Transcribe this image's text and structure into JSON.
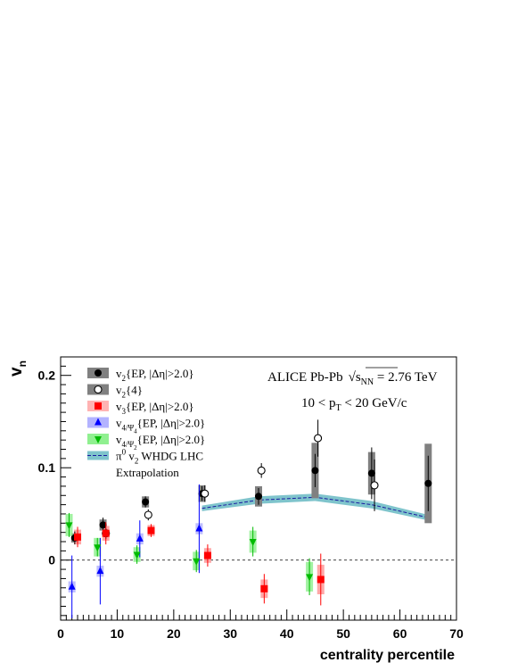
{
  "chart_data": {
    "type": "scatter",
    "xlabel": "centrality percentile",
    "ylabel": "v",
    "ylabel_sub": "n",
    "xlim": [
      0,
      70
    ],
    "ylim": [
      -0.065,
      0.22
    ],
    "x_ticks": [
      0,
      10,
      20,
      30,
      40,
      50,
      60,
      70
    ],
    "y_ticks": [
      -0.1,
      0,
      0.1,
      0.2
    ],
    "y_tick_labels": [
      "",
      "0",
      "0.1",
      "0.2"
    ],
    "zero_line": true,
    "annotation": {
      "line1_prefix": "ALICE Pb-Pb",
      "line1_sqrt": "s",
      "line1_sqrt_sub": "NN",
      "line1_suffix": " = 2.76 TeV",
      "line2_prefix": "10 < p",
      "line2_sub": "T",
      "line2_suffix": " < 20 GeV/c"
    },
    "legend": [
      {
        "key": "v2_ep",
        "main": "v",
        "sub": "2",
        "tail": "{EP, |Δη|>2.0}",
        "marker": "circle-filled",
        "color": "#000000",
        "box": "#808080"
      },
      {
        "key": "v2_4",
        "main": "v",
        "sub": "2",
        "tail": "{4}",
        "marker": "circle-open",
        "color": "#000000",
        "box": "#808080"
      },
      {
        "key": "v3_ep",
        "main": "v",
        "sub": "3",
        "tail": "{EP, |Δη|>2.0}",
        "marker": "square",
        "color": "#ff0000",
        "box": "#ffb3b3"
      },
      {
        "key": "v4_psi4",
        "main": "v",
        "sub": "4/Ψ",
        "subsub": "4",
        "tail": "{EP, |Δη|>2.0}",
        "marker": "triangle-up",
        "color": "#0000ff",
        "box": "#b3b3ff"
      },
      {
        "key": "v4_psi2",
        "main": "v",
        "sub": "4/Ψ",
        "subsub": "2",
        "tail": "{EP, |Δη|>2.0}",
        "marker": "triangle-down",
        "color": "#00bb00",
        "box": "#90f090"
      },
      {
        "key": "whdg",
        "main": "π",
        "sup": "0",
        "text2": " v",
        "sub2": "2",
        "tail": " WHDG LHC",
        "marker": "band",
        "color": "#1a1aa0",
        "box": "#7fc4cc"
      },
      {
        "key": "extrap",
        "tail": "Extrapolation",
        "marker": "none"
      }
    ],
    "series": [
      {
        "name": "v2{EP, |Δη|>2.0}",
        "marker": "circle-filled",
        "color": "#000000",
        "sys_color": "#808080",
        "points": [
          {
            "x": 2.5,
            "y": 0.024,
            "stat": 0.007,
            "sys": 0.005
          },
          {
            "x": 7.5,
            "y": 0.038,
            "stat": 0.008,
            "sys": 0.006
          },
          {
            "x": 15,
            "y": 0.063,
            "stat": 0.006,
            "sys": 0.006
          },
          {
            "x": 25,
            "y": 0.072,
            "stat": 0.008,
            "sys": 0.009
          },
          {
            "x": 35,
            "y": 0.069,
            "stat": 0.009,
            "sys": 0.011
          },
          {
            "x": 45,
            "y": 0.097,
            "stat": 0.018,
            "sys": 0.03
          },
          {
            "x": 55,
            "y": 0.094,
            "stat": 0.028,
            "sys": 0.023
          },
          {
            "x": 65,
            "y": 0.083,
            "stat": 0.03,
            "sys": 0.043
          }
        ]
      },
      {
        "name": "v2{4}",
        "marker": "circle-open",
        "color": "#000000",
        "sys_color": "#808080",
        "points": [
          {
            "x": 8.0,
            "y": 0.029,
            "stat": 0.006
          },
          {
            "x": 15.5,
            "y": 0.049,
            "stat": 0.006
          },
          {
            "x": 25.5,
            "y": 0.072,
            "stat": 0.009
          },
          {
            "x": 35.5,
            "y": 0.097,
            "stat": 0.008
          },
          {
            "x": 45.5,
            "y": 0.132,
            "stat": 0.02
          },
          {
            "x": 55.5,
            "y": 0.081,
            "stat": 0.028
          }
        ]
      },
      {
        "name": "v3{EP, |Δη|>2.0}",
        "marker": "square",
        "color": "#ff0000",
        "sys_color": "#ff9999",
        "points": [
          {
            "x": 3.0,
            "y": 0.025,
            "stat": 0.011,
            "sys": 0.008
          },
          {
            "x": 8.0,
            "y": 0.029,
            "stat": 0.012,
            "sys": 0.008
          },
          {
            "x": 16.0,
            "y": 0.032,
            "stat": 0.007,
            "sys": 0.006
          },
          {
            "x": 26.0,
            "y": 0.005,
            "stat": 0.012,
            "sys": 0.008
          },
          {
            "x": 36.0,
            "y": -0.031,
            "stat": 0.016,
            "sys": 0.01
          },
          {
            "x": 46.0,
            "y": -0.021,
            "stat": 0.028,
            "sys": 0.016
          }
        ]
      },
      {
        "name": "v4/Ψ4{EP, |Δη|>2.0}",
        "marker": "triangle-up",
        "color": "#0000ff",
        "sys_color": "#b3b3ff",
        "points": [
          {
            "x": 2.0,
            "y": -0.029,
            "stat": 0.034,
            "sys": 0.006
          },
          {
            "x": 7.0,
            "y": -0.012,
            "stat": 0.036,
            "sys": 0.006
          },
          {
            "x": 14.0,
            "y": 0.023,
            "stat": 0.02,
            "sys": 0.006
          },
          {
            "x": 24.5,
            "y": 0.034,
            "stat": 0.048,
            "sys": 0.006
          }
        ]
      },
      {
        "name": "v4/Ψ2{EP, |Δη|>2.0}",
        "marker": "triangle-down",
        "color": "#00bb00",
        "sys_color": "#90f090",
        "points": [
          {
            "x": 1.5,
            "y": 0.038,
            "stat": 0.013,
            "sys": 0.012
          },
          {
            "x": 6.5,
            "y": 0.014,
            "stat": 0.01,
            "sys": 0.01
          },
          {
            "x": 13.5,
            "y": 0.006,
            "stat": 0.01,
            "sys": 0.008
          },
          {
            "x": 24.0,
            "y": -0.001,
            "stat": 0.012,
            "sys": 0.01
          },
          {
            "x": 34.0,
            "y": 0.02,
            "stat": 0.016,
            "sys": 0.012
          },
          {
            "x": 44.0,
            "y": -0.018,
            "stat": 0.02,
            "sys": 0.016
          }
        ]
      },
      {
        "name": "π0 v2 WHDG LHC",
        "marker": "band",
        "color": "#1a1aa0",
        "sys_color": "#7fc4cc",
        "band": [
          {
            "x": 25,
            "lo": 0.053,
            "hi": 0.059
          },
          {
            "x": 35,
            "lo": 0.061,
            "hi": 0.069
          },
          {
            "x": 45,
            "lo": 0.064,
            "hi": 0.072
          },
          {
            "x": 55,
            "lo": 0.056,
            "hi": 0.064
          },
          {
            "x": 65,
            "lo": 0.043,
            "hi": 0.049
          }
        ],
        "line": [
          {
            "x": 25,
            "y": 0.056
          },
          {
            "x": 35,
            "y": 0.065
          },
          {
            "x": 45,
            "y": 0.068
          },
          {
            "x": 55,
            "y": 0.06
          },
          {
            "x": 65,
            "y": 0.046
          }
        ]
      }
    ]
  }
}
